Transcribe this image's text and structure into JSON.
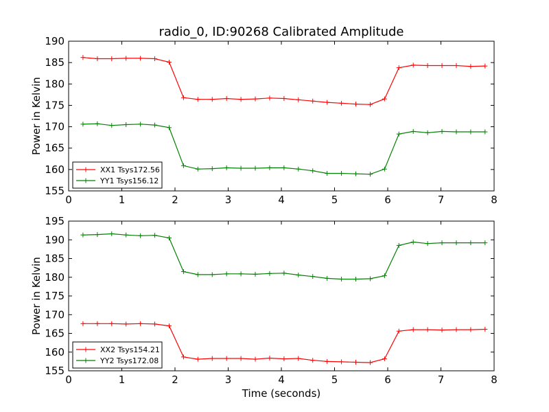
{
  "chart_data": [
    {
      "type": "line",
      "title": "radio_0, ID:90268 Calibrated Amplitude",
      "xlabel": "",
      "ylabel": "Power in Kelvin",
      "xlim": [
        0,
        8
      ],
      "ylim": [
        155,
        190
      ],
      "xticks": [
        "0",
        "1",
        "2",
        "3",
        "4",
        "5",
        "6",
        "7",
        "8"
      ],
      "yticks": [
        "155",
        "160",
        "165",
        "170",
        "175",
        "180",
        "185",
        "190"
      ],
      "grid": false,
      "legend_position": "lower-left",
      "x": [
        0.27,
        0.54,
        0.81,
        1.08,
        1.35,
        1.62,
        1.89,
        2.16,
        2.43,
        2.7,
        2.97,
        3.24,
        3.51,
        3.78,
        4.05,
        4.32,
        4.59,
        4.86,
        5.13,
        5.4,
        5.67,
        5.94,
        6.21,
        6.48,
        6.75,
        7.02,
        7.29,
        7.56,
        7.83
      ],
      "series": [
        {
          "name": "XX1 Tsys172.56",
          "color": "#ff0000",
          "values": [
            186.2,
            185.9,
            185.9,
            186.0,
            186.0,
            185.9,
            185.1,
            176.8,
            176.4,
            176.4,
            176.6,
            176.4,
            176.5,
            176.7,
            176.6,
            176.3,
            176.0,
            175.7,
            175.5,
            175.3,
            175.2,
            176.5,
            183.8,
            184.4,
            184.3,
            184.3,
            184.3,
            184.1,
            184.2
          ]
        },
        {
          "name": "YY1 Tsys156.12",
          "color": "#008000",
          "values": [
            170.6,
            170.7,
            170.3,
            170.5,
            170.6,
            170.4,
            169.8,
            160.9,
            160.1,
            160.2,
            160.4,
            160.3,
            160.3,
            160.4,
            160.4,
            160.1,
            159.7,
            159.1,
            159.1,
            159.0,
            158.9,
            160.1,
            168.3,
            168.9,
            168.6,
            168.9,
            168.8,
            168.8,
            168.8
          ]
        }
      ]
    },
    {
      "type": "line",
      "title": "",
      "xlabel": "Time (seconds)",
      "ylabel": "Power in Kelvin",
      "xlim": [
        0,
        8
      ],
      "ylim": [
        155,
        195
      ],
      "xticks": [
        "0",
        "1",
        "2",
        "3",
        "4",
        "5",
        "6",
        "7",
        "8"
      ],
      "yticks": [
        "155",
        "160",
        "165",
        "170",
        "175",
        "180",
        "185",
        "190",
        "195"
      ],
      "grid": false,
      "legend_position": "lower-left",
      "x": [
        0.27,
        0.54,
        0.81,
        1.08,
        1.35,
        1.62,
        1.89,
        2.16,
        2.43,
        2.7,
        2.97,
        3.24,
        3.51,
        3.78,
        4.05,
        4.32,
        4.59,
        4.86,
        5.13,
        5.4,
        5.67,
        5.94,
        6.21,
        6.48,
        6.75,
        7.02,
        7.29,
        7.56,
        7.83
      ],
      "series": [
        {
          "name": "XX2 Tsys154.21",
          "color": "#ff0000",
          "values": [
            167.6,
            167.6,
            167.6,
            167.5,
            167.6,
            167.5,
            167.0,
            158.7,
            158.1,
            158.3,
            158.3,
            158.3,
            158.1,
            158.4,
            158.2,
            158.3,
            157.8,
            157.5,
            157.4,
            157.3,
            157.2,
            158.2,
            165.6,
            166.0,
            166.0,
            165.9,
            166.0,
            166.0,
            166.1
          ]
        },
        {
          "name": "YY2 Tsys172.08",
          "color": "#008000",
          "values": [
            191.3,
            191.4,
            191.6,
            191.3,
            191.1,
            191.2,
            190.5,
            181.5,
            180.7,
            180.7,
            180.9,
            180.9,
            180.8,
            181.0,
            181.1,
            180.6,
            180.2,
            179.7,
            179.5,
            179.5,
            179.6,
            180.4,
            188.5,
            189.4,
            189.0,
            189.2,
            189.2,
            189.2,
            189.2
          ]
        }
      ]
    }
  ]
}
